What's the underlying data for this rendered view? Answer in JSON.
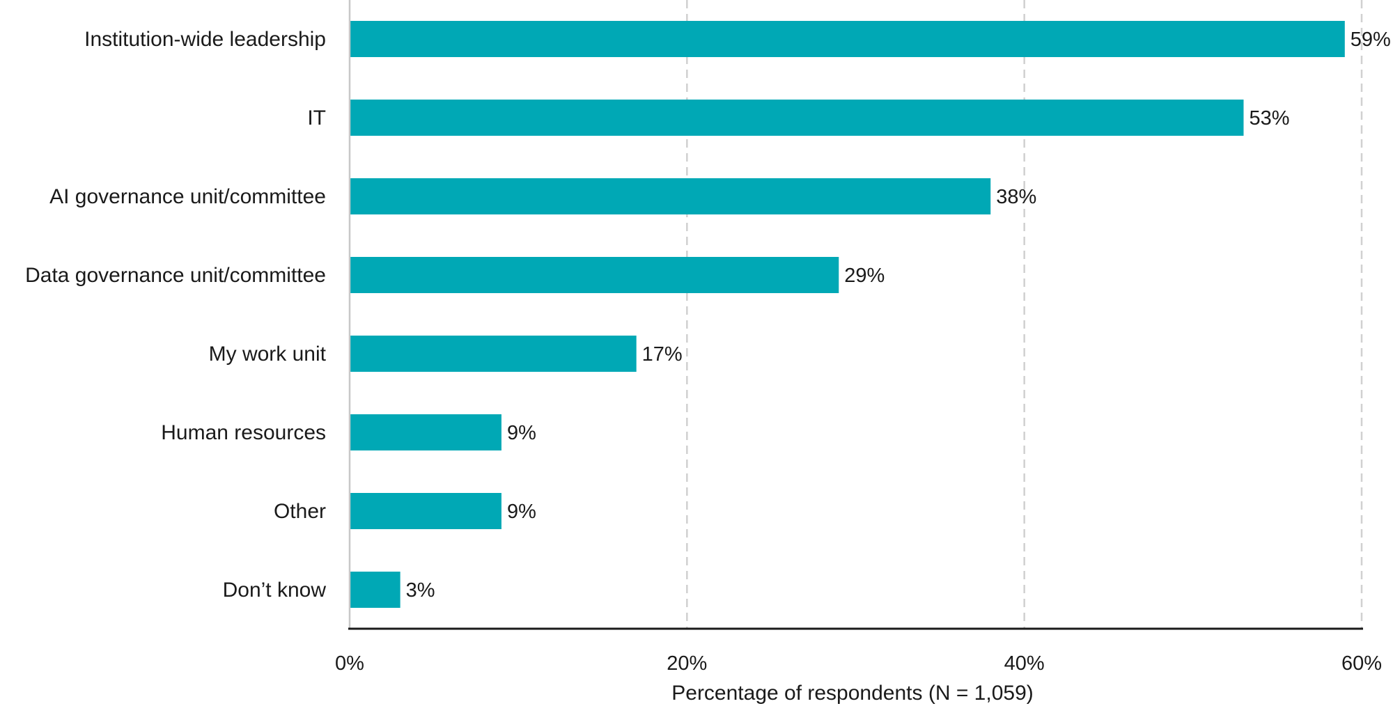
{
  "chart_data": {
    "type": "bar",
    "orientation": "horizontal",
    "categories": [
      "Institution-wide leadership",
      "IT",
      "AI governance unit/committee",
      "Data governance unit/committee",
      "My work unit",
      "Human resources",
      "Other",
      "Don’t know"
    ],
    "values": [
      59,
      53,
      38,
      29,
      17,
      9,
      9,
      3
    ],
    "value_labels": [
      "59%",
      "53%",
      "38%",
      "29%",
      "17%",
      "9%",
      "9%",
      "3%"
    ],
    "xlabel": "Percentage of respondents (N = 1,059)",
    "ylabel": "",
    "xlim": [
      0,
      60
    ],
    "xticks": [
      0,
      20,
      40,
      60
    ],
    "xtick_labels": [
      "0%",
      "20%",
      "40%",
      "60%"
    ],
    "grid": "vertical dashed",
    "bar_color": "#00a8b5",
    "grid_color": "#d0d0d0",
    "axis_color": "#1a1a1a"
  }
}
